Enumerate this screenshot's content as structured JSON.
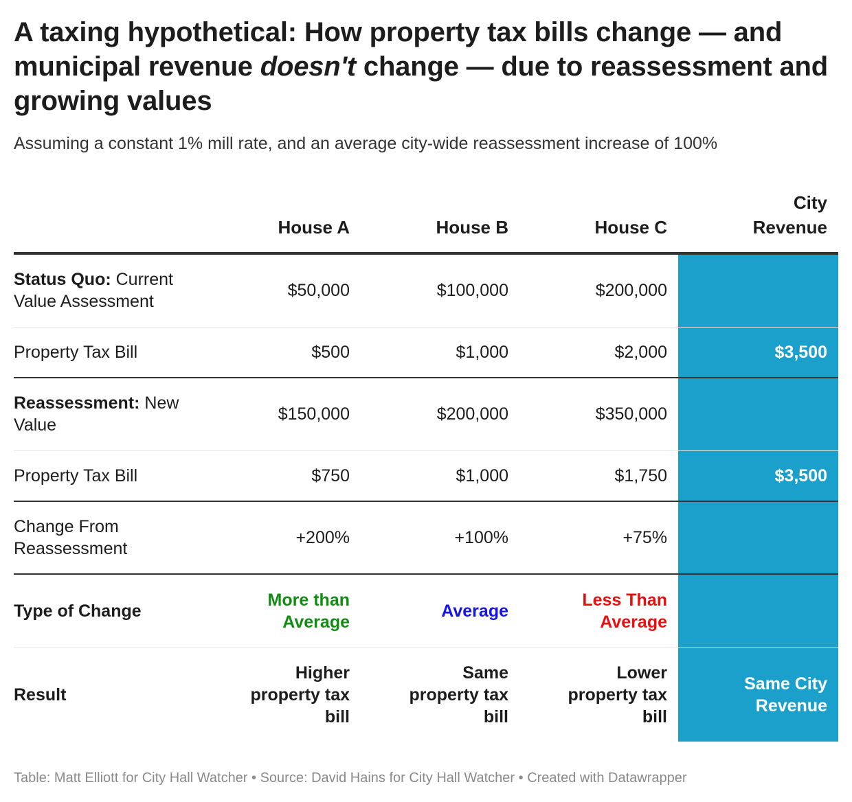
{
  "title": {
    "part1": "A taxing hypothetical: How property tax bills change — and municipal revenue ",
    "emphasis": "doesn't",
    "part2": " change — due to reassessment and growing values"
  },
  "subtitle": "Assuming a constant 1% mill rate, and an average city-wide reassessment increase of 100%",
  "table": {
    "headers": [
      "",
      "House A",
      "House B",
      "House C",
      "City Revenue"
    ],
    "rows": [
      {
        "label_bold": "Status Quo:",
        "label_rest": " Current Value Assessment",
        "cells": [
          "$50,000",
          "$100,000",
          "$200,000"
        ],
        "city": ""
      },
      {
        "label_bold": "",
        "label_rest": "Property Tax Bill",
        "cells": [
          "$500",
          "$1,000",
          "$2,000"
        ],
        "city": "$3,500"
      },
      {
        "label_bold": "Reassessment:",
        "label_rest": " New Value",
        "cells": [
          "$150,000",
          "$200,000",
          "$350,000"
        ],
        "city": ""
      },
      {
        "label_bold": "",
        "label_rest": "Property Tax Bill",
        "cells": [
          "$750",
          "$1,000",
          "$1,750"
        ],
        "city": "$3,500"
      },
      {
        "label_bold": "",
        "label_rest": "Change From Reassessment",
        "cells": [
          "+200%",
          "+100%",
          "+75%"
        ],
        "city": ""
      },
      {
        "label_bold": "Type of Change",
        "label_rest": "",
        "cells": [
          "More than Average",
          "Average",
          "Less Than Average"
        ],
        "city": ""
      },
      {
        "label_bold": "Result",
        "label_rest": "",
        "cells": [
          "Higher property tax bill",
          "Same property tax bill",
          "Lower property tax bill"
        ],
        "city": "Same City Revenue"
      }
    ]
  },
  "colors": {
    "city_column": "#1aa0cb",
    "more_than_average": "#138c13",
    "average": "#1515e6",
    "less_than_average": "#e61010"
  },
  "footer": "Table: Matt Elliott for City Hall Watcher • Source: David Hains for City Hall Watcher • Created with Datawrapper"
}
